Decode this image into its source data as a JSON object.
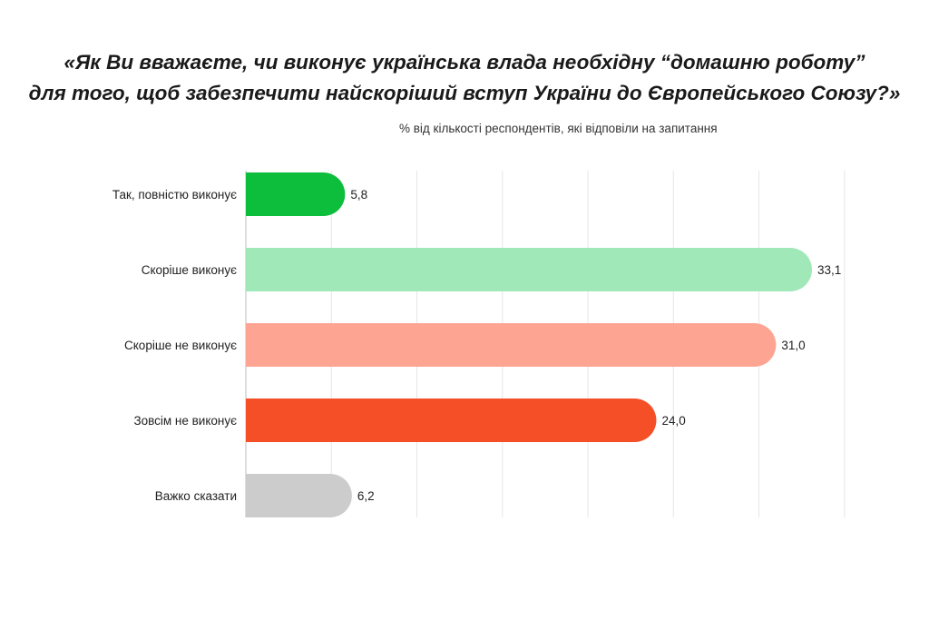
{
  "title_line1": "«Як Ви вважаєте, чи виконує українська влада необхідну “домашню роботу”",
  "title_line2": "для того, щоб забезпечити найскоріший вступ України до Європейського Союзу?»",
  "subtitle": "% від кількості респондентів, які відповіли на запитання",
  "chart_data": {
    "type": "bar",
    "orientation": "horizontal",
    "title": "«Як Ви вважаєте, чи виконує українська влада необхідну “домашню роботу” для того, щоб забезпечити найскоріший вступ України до Європейського Союзу?»",
    "subtitle": "% від кількості респондентів, які відповіли на запитання",
    "categories": [
      "Так, повністю виконує",
      "Скоріше виконує",
      "Скоріше не виконує",
      "Зовсім не виконує",
      "Важко сказати"
    ],
    "values": [
      5.8,
      33.1,
      31.0,
      24.0,
      6.2
    ],
    "value_labels": [
      "5,8",
      "33,1",
      "31,0",
      "24,0",
      "6,2"
    ],
    "colors": [
      "#0dbd3c",
      "#a0e8b7",
      "#fda592",
      "#f44f27",
      "#cccccc"
    ],
    "xlim": [
      0,
      35
    ],
    "grid": true,
    "legend": "none"
  }
}
